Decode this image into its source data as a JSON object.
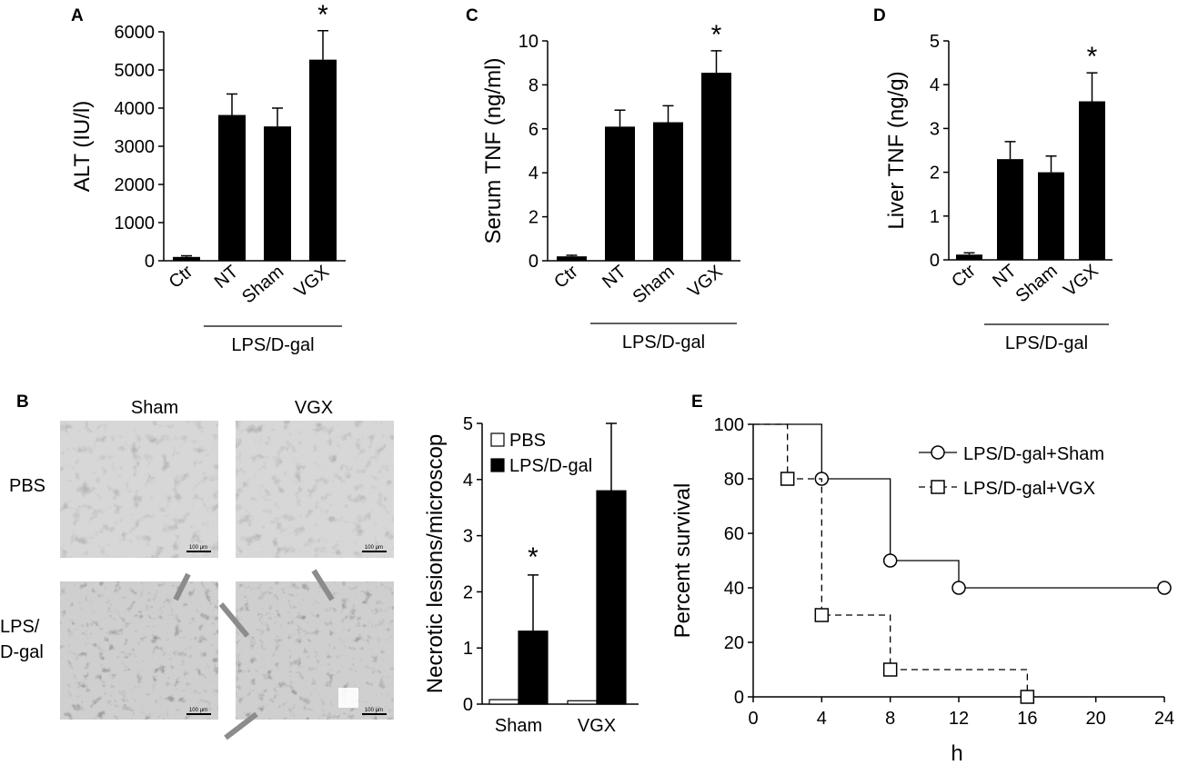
{
  "chart_data": [
    {
      "panel": "A",
      "type": "bar",
      "ylabel": "ALT (IU/l)",
      "ylim": [
        0,
        6000
      ],
      "yticks": [
        "0",
        "1000",
        "2000",
        "3000",
        "4000",
        "5000",
        "6000"
      ],
      "categories": [
        "Ctr",
        "NT",
        "Sham",
        "VGX"
      ],
      "values": [
        100,
        3820,
        3520,
        5270
      ],
      "errors": [
        30,
        550,
        480,
        760
      ],
      "significant": [
        "",
        "",
        "",
        "*"
      ],
      "group_label": "LPS/D-gal"
    },
    {
      "panel": "C",
      "type": "bar",
      "ylabel": "Serum TNF (ng/ml)",
      "ylim": [
        0,
        10
      ],
      "yticks": [
        "0",
        "2",
        "4",
        "6",
        "8",
        "10"
      ],
      "categories": [
        "Ctr",
        "NT",
        "Sham",
        "VGX"
      ],
      "values": [
        0.2,
        6.1,
        6.3,
        8.55
      ],
      "errors": [
        0.05,
        0.75,
        0.75,
        1.0
      ],
      "significant": [
        "",
        "",
        "",
        "*"
      ],
      "group_label": "LPS/D-gal"
    },
    {
      "panel": "D",
      "type": "bar",
      "ylabel": "Liver TNF (ng/g)",
      "ylim": [
        0,
        5
      ],
      "yticks": [
        "0",
        "1",
        "2",
        "3",
        "4",
        "5"
      ],
      "categories": [
        "Ctr",
        "NT",
        "Sham",
        "VGX"
      ],
      "values": [
        0.12,
        2.3,
        2.0,
        3.62
      ],
      "errors": [
        0.04,
        0.4,
        0.37,
        0.65
      ],
      "significant": [
        "",
        "",
        "",
        "*"
      ],
      "group_label": "LPS/D-gal"
    },
    {
      "panel": "B",
      "type": "bar",
      "ylabel": "Necrotic lesions/microscop",
      "ylim": [
        0,
        5
      ],
      "yticks": [
        "0",
        "1",
        "2",
        "3",
        "4",
        "5"
      ],
      "categories": [
        "Sham",
        "VGX"
      ],
      "series": [
        {
          "name": "PBS",
          "values": [
            0.08,
            0.06
          ],
          "errors": [
            0,
            0
          ],
          "color": "#ffffff"
        },
        {
          "name": "LPS/D-gal",
          "values": [
            1.3,
            3.8
          ],
          "errors": [
            1.0,
            1.2
          ],
          "color": "#000000"
        }
      ],
      "significant": [
        "*",
        ""
      ],
      "legend": "top-left"
    },
    {
      "panel": "E",
      "type": "line",
      "xlabel": "h",
      "ylabel": "Percent survival",
      "xlim": [
        0,
        24
      ],
      "ylim": [
        0,
        100
      ],
      "xticks": [
        "0",
        "4",
        "8",
        "12",
        "16",
        "20",
        "24"
      ],
      "yticks": [
        "0",
        "20",
        "40",
        "60",
        "80",
        "100"
      ],
      "series": [
        {
          "name": "LPS/D-gal+Sham",
          "marker": "circle",
          "line": "solid",
          "steps": [
            [
              0,
              100
            ],
            [
              4,
              80
            ],
            [
              8,
              50
            ],
            [
              12,
              40
            ],
            [
              24,
              40
            ]
          ]
        },
        {
          "name": "LPS/D-gal+VGX",
          "marker": "square",
          "line": "dashed",
          "steps": [
            [
              0,
              100
            ],
            [
              2,
              80
            ],
            [
              4,
              30
            ],
            [
              8,
              10
            ],
            [
              16,
              0
            ]
          ]
        }
      ],
      "legend": "top-right"
    }
  ],
  "panels": {
    "A": "A",
    "B": "B",
    "C": "C",
    "D": "D",
    "E": "E"
  },
  "micrographs": {
    "col_labels": [
      "Sham",
      "VGX"
    ],
    "row_labels": [
      "PBS",
      "LPS/\nD-gal"
    ],
    "scale_bar": "100 µm"
  }
}
